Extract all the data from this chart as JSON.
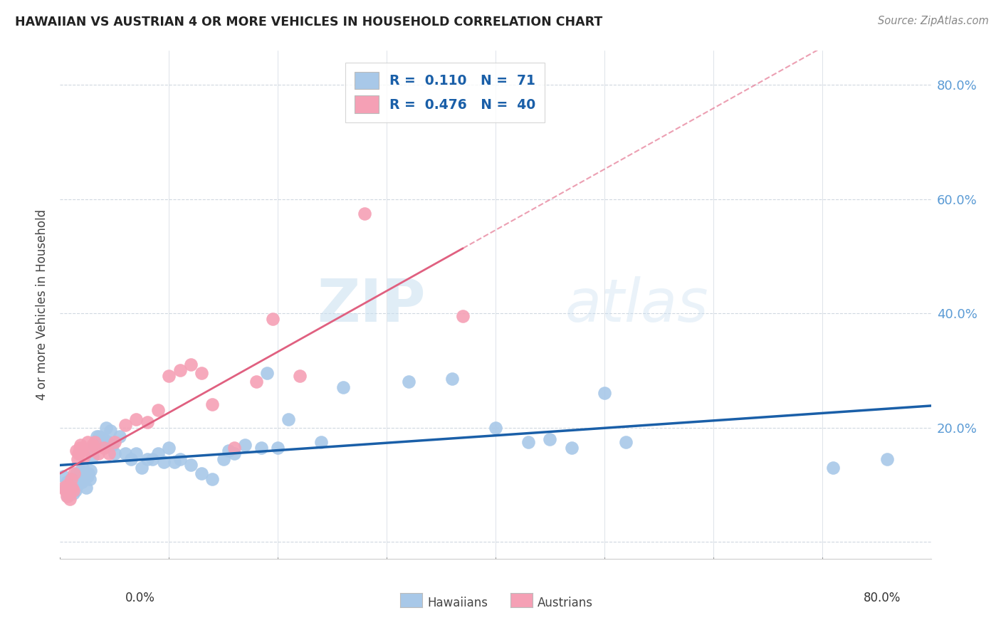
{
  "title": "HAWAIIAN VS AUSTRIAN 4 OR MORE VEHICLES IN HOUSEHOLD CORRELATION CHART",
  "source": "Source: ZipAtlas.com",
  "ylabel": "4 or more Vehicles in Household",
  "xlim": [
    0.0,
    0.8
  ],
  "ylim": [
    -0.03,
    0.86
  ],
  "yticks": [
    0.0,
    0.2,
    0.4,
    0.6,
    0.8
  ],
  "hawaii_color": "#a8c8e8",
  "austrian_color": "#f5a0b5",
  "hawaii_line_color": "#1a5fa8",
  "austrian_line_color": "#e06080",
  "watermark_zip": "ZIP",
  "watermark_atlas": "atlas",
  "hawaii_R": 0.11,
  "hawaii_N": 71,
  "austrian_R": 0.476,
  "austrian_N": 40,
  "hawaii_x": [
    0.003,
    0.005,
    0.006,
    0.007,
    0.008,
    0.009,
    0.01,
    0.011,
    0.012,
    0.013,
    0.014,
    0.015,
    0.016,
    0.017,
    0.018,
    0.019,
    0.02,
    0.021,
    0.022,
    0.023,
    0.024,
    0.025,
    0.026,
    0.027,
    0.028,
    0.03,
    0.032,
    0.034,
    0.036,
    0.038,
    0.04,
    0.042,
    0.044,
    0.046,
    0.048,
    0.05,
    0.055,
    0.06,
    0.065,
    0.07,
    0.075,
    0.08,
    0.085,
    0.09,
    0.095,
    0.1,
    0.105,
    0.11,
    0.12,
    0.13,
    0.14,
    0.15,
    0.155,
    0.16,
    0.17,
    0.185,
    0.19,
    0.2,
    0.21,
    0.24,
    0.26,
    0.32,
    0.36,
    0.4,
    0.43,
    0.45,
    0.47,
    0.5,
    0.52,
    0.71,
    0.76
  ],
  "hawaii_y": [
    0.115,
    0.095,
    0.105,
    0.08,
    0.095,
    0.09,
    0.11,
    0.1,
    0.085,
    0.105,
    0.09,
    0.12,
    0.1,
    0.11,
    0.115,
    0.125,
    0.105,
    0.13,
    0.115,
    0.12,
    0.095,
    0.115,
    0.12,
    0.11,
    0.125,
    0.15,
    0.17,
    0.185,
    0.185,
    0.175,
    0.18,
    0.2,
    0.175,
    0.195,
    0.17,
    0.155,
    0.185,
    0.155,
    0.145,
    0.155,
    0.13,
    0.145,
    0.145,
    0.155,
    0.14,
    0.165,
    0.14,
    0.145,
    0.135,
    0.12,
    0.11,
    0.145,
    0.16,
    0.155,
    0.17,
    0.165,
    0.295,
    0.165,
    0.215,
    0.175,
    0.27,
    0.28,
    0.285,
    0.2,
    0.175,
    0.18,
    0.165,
    0.26,
    0.175,
    0.13,
    0.145
  ],
  "austrian_x": [
    0.003,
    0.005,
    0.006,
    0.007,
    0.008,
    0.009,
    0.01,
    0.011,
    0.012,
    0.013,
    0.015,
    0.016,
    0.017,
    0.018,
    0.019,
    0.02,
    0.022,
    0.025,
    0.028,
    0.03,
    0.032,
    0.035,
    0.04,
    0.045,
    0.05,
    0.06,
    0.07,
    0.08,
    0.09,
    0.1,
    0.11,
    0.12,
    0.13,
    0.14,
    0.16,
    0.18,
    0.195,
    0.22,
    0.28,
    0.37
  ],
  "austrian_y": [
    0.095,
    0.09,
    0.08,
    0.1,
    0.085,
    0.075,
    0.11,
    0.095,
    0.09,
    0.12,
    0.16,
    0.145,
    0.155,
    0.165,
    0.17,
    0.16,
    0.15,
    0.175,
    0.16,
    0.17,
    0.175,
    0.155,
    0.165,
    0.155,
    0.175,
    0.205,
    0.215,
    0.21,
    0.23,
    0.29,
    0.3,
    0.31,
    0.295,
    0.24,
    0.165,
    0.28,
    0.39,
    0.29,
    0.575,
    0.395
  ]
}
